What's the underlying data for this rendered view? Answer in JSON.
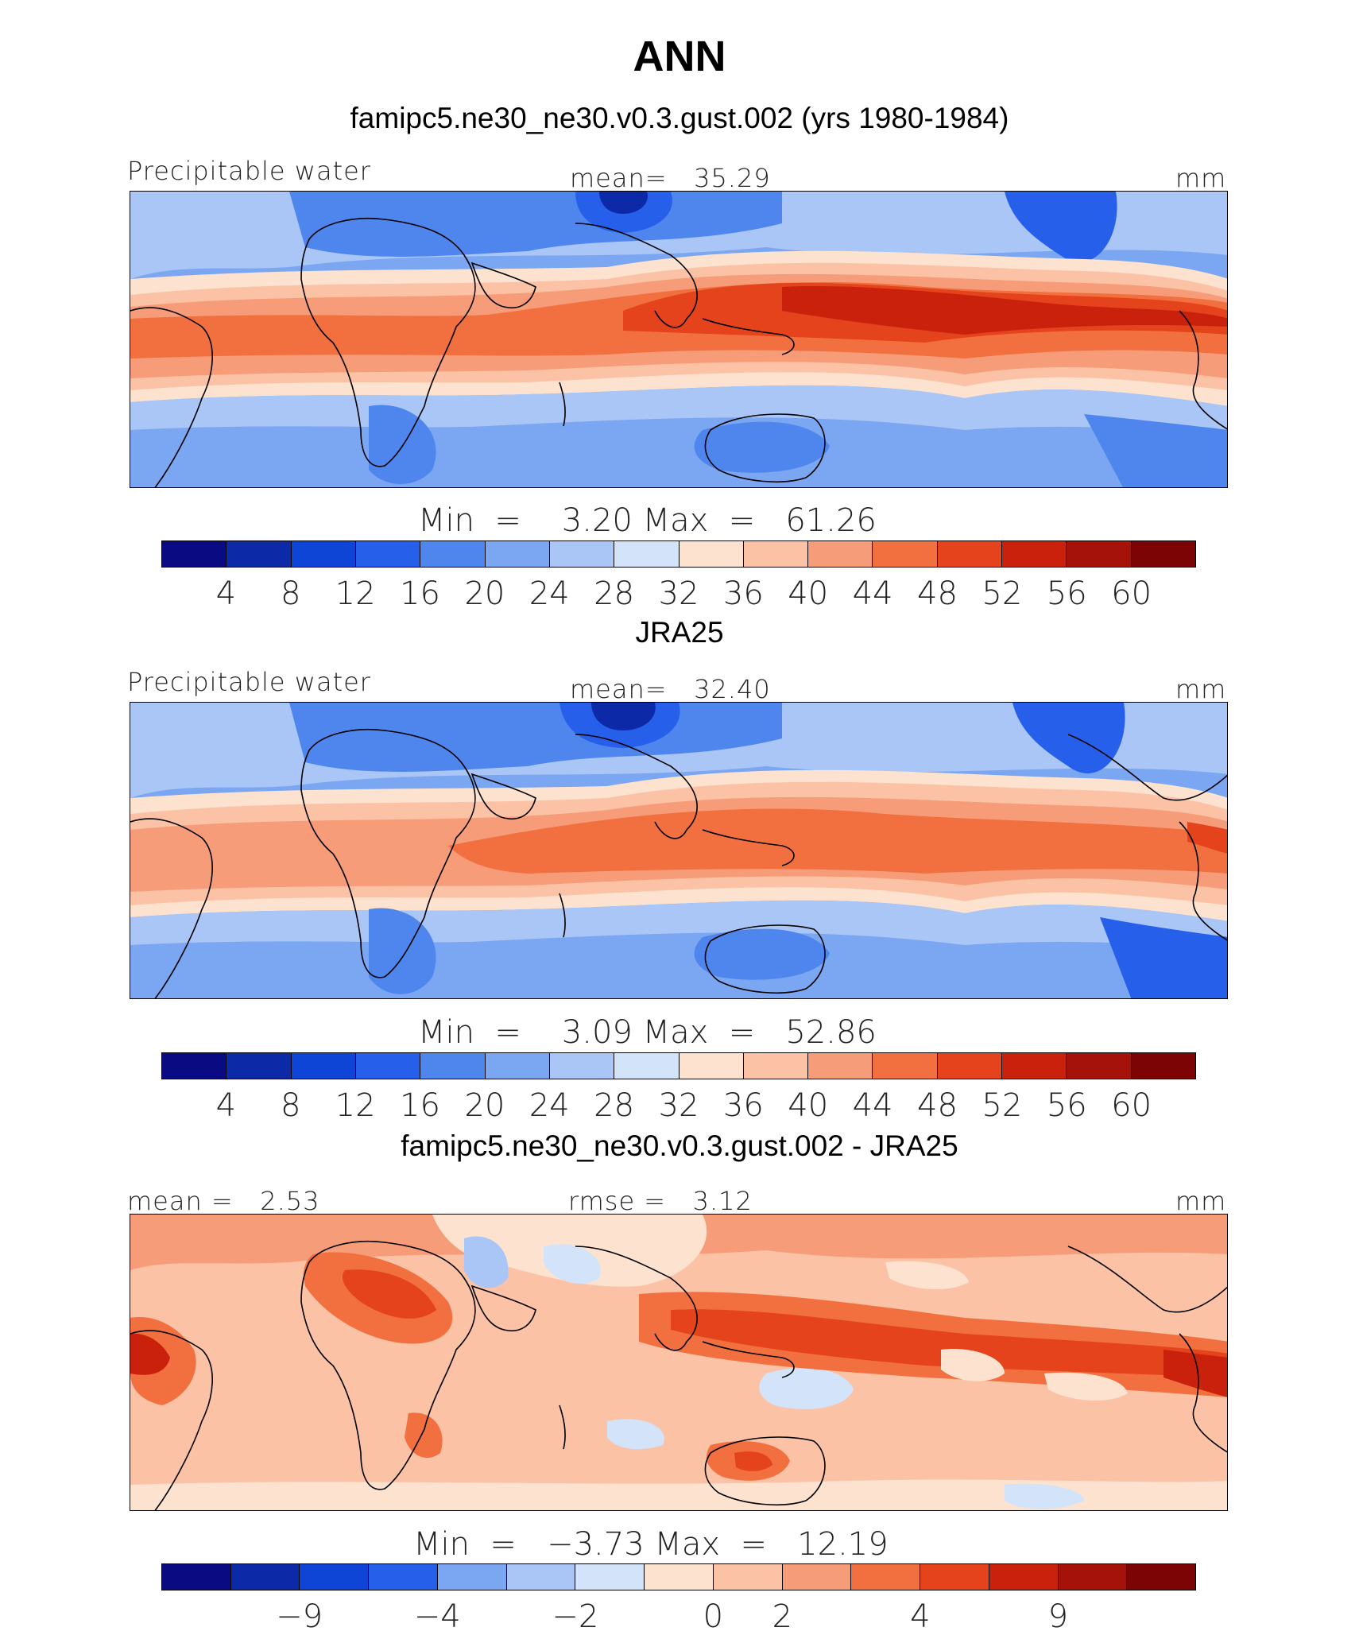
{
  "figure": {
    "title": "ANN"
  },
  "colormaps": {
    "abs": [
      "#0a0a82",
      "#0c2aa8",
      "#0f45d6",
      "#2660ea",
      "#4f86ee",
      "#7aa6f2",
      "#a9c6f6",
      "#d3e3fa",
      "#fde2d0",
      "#fbc2a6",
      "#f79c78",
      "#f2703f",
      "#e4431c",
      "#c9210c",
      "#a51209",
      "#7c0404"
    ],
    "diff": [
      "#0a0a82",
      "#0c2aa8",
      "#0f45d6",
      "#2660ea",
      "#7aa6f2",
      "#a9c6f6",
      "#d3e3fa",
      "#fde2d0",
      "#fbc2a6",
      "#f79c78",
      "#f2703f",
      "#e4431c",
      "#c9210c",
      "#a51209",
      "#7c0404"
    ]
  },
  "panels": [
    {
      "title": "famipc5.ne30_ne30.v0.3.gust.002 (yrs 1980-1984)",
      "left_label": "Precipitable water",
      "center_label": "mean=",
      "center_value": "35.29",
      "right_label": "mm",
      "min_label": "Min  =",
      "min_value": "3.20",
      "max_label": "Max  =",
      "max_value": "61.26",
      "ticks": [
        "4",
        "8",
        "12",
        "16",
        "20",
        "24",
        "28",
        "32",
        "36",
        "40",
        "44",
        "48",
        "52",
        "56",
        "60"
      ]
    },
    {
      "title": "JRA25",
      "left_label": "Precipitable water",
      "center_label": "mean=",
      "center_value": "32.40",
      "right_label": "mm",
      "min_label": "Min  =",
      "min_value": "3.09",
      "max_label": "Max  =",
      "max_value": "52.86",
      "ticks": [
        "4",
        "8",
        "12",
        "16",
        "20",
        "24",
        "28",
        "32",
        "36",
        "40",
        "44",
        "48",
        "52",
        "56",
        "60"
      ]
    },
    {
      "title": "famipc5.ne30_ne30.v0.3.gust.002 - JRA25",
      "left_label": "mean =",
      "left_value": "2.53",
      "center_label": "rmse =",
      "center_value": "3.12",
      "right_label": "mm",
      "min_label": "Min  =",
      "min_value": "−3.73",
      "max_label": "Max  =",
      "max_value": "12.19",
      "ticks": [
        "−9",
        "−4",
        "−2",
        "0",
        "2",
        "4",
        "9"
      ]
    }
  ],
  "chart_data": [
    {
      "type": "heatmap",
      "title": "famipc5.ne30_ne30.v0.3.gust.002 (yrs 1980-1984)",
      "variable": "Precipitable water",
      "units": "mm",
      "mean": 35.29,
      "min": 3.2,
      "max": 61.26,
      "contour_levels": [
        4,
        8,
        12,
        16,
        20,
        24,
        28,
        32,
        36,
        40,
        44,
        48,
        52,
        56,
        60
      ]
    },
    {
      "type": "heatmap",
      "title": "JRA25",
      "variable": "Precipitable water",
      "units": "mm",
      "mean": 32.4,
      "min": 3.09,
      "max": 52.86,
      "contour_levels": [
        4,
        8,
        12,
        16,
        20,
        24,
        28,
        32,
        36,
        40,
        44,
        48,
        52,
        56,
        60
      ]
    },
    {
      "type": "heatmap",
      "title": "famipc5.ne30_ne30.v0.3.gust.002 - JRA25",
      "units": "mm",
      "mean": 2.53,
      "rmse": 3.12,
      "min": -3.73,
      "max": 12.19,
      "contour_levels": [
        -9,
        -4,
        -2,
        0,
        2,
        4,
        9
      ]
    }
  ]
}
